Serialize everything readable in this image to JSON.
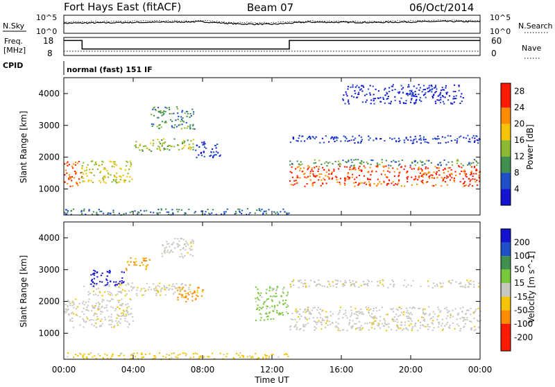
{
  "header": {
    "station": "Fort Hays East (fitACF)",
    "beam": "Beam 07",
    "date": "06/Oct/2014"
  },
  "top_panels": {
    "nsky_label": "N.Sky",
    "nsearch_label": "N.Search",
    "noise_ticks": [
      "10^5",
      "10^0"
    ],
    "freq_label_1": "Freq.",
    "freq_label_2": "[MHz]",
    "freq_ticks": [
      "18",
      "8"
    ],
    "nave_label": "Nave",
    "nave_ticks": [
      "60",
      "0"
    ],
    "cpid_label": "CPID",
    "cpid_text": "normal (fast) 151 IF"
  },
  "colors": {
    "red": "#ff1a00",
    "orange": "#ff8c00",
    "yellow": "#f5c400",
    "green": "#3f8f4f",
    "blue": "#2050c8",
    "deepblue": "#1414d0",
    "lightgreen": "#78c83c",
    "grey": "#c8c8c0"
  },
  "chart_data": [
    {
      "type": "line",
      "title": "N.Sky / N.Search",
      "x_range_hours": [
        0,
        24
      ],
      "ylim_log10": [
        0,
        5
      ],
      "series": [
        {
          "name": "N.Sky",
          "style": "solid",
          "x": [
            0,
            4,
            8,
            10,
            12,
            14,
            18,
            22,
            24
          ],
          "log10_y": [
            2.8,
            3.0,
            3.2,
            2.6,
            2.5,
            3.1,
            3.0,
            3.3,
            3.2
          ]
        },
        {
          "name": "N.Search",
          "style": "dotted",
          "x": [
            0,
            4,
            8,
            10,
            12,
            14,
            18,
            22,
            24
          ],
          "log10_y": [
            3.1,
            3.4,
            3.5,
            3.0,
            2.9,
            3.4,
            3.3,
            3.6,
            3.5
          ]
        }
      ]
    },
    {
      "type": "line",
      "title": "Freq. / Nave",
      "x_range_hours": [
        0,
        24
      ],
      "ylim_freq": [
        8,
        18
      ],
      "ylim_nave": [
        0,
        60
      ],
      "series": [
        {
          "name": "Freq.",
          "style": "solid",
          "x": [
            0,
            1.05,
            1.05,
            13.0,
            13.0,
            24
          ],
          "y": [
            16.3,
            16.3,
            11.6,
            11.6,
            16.3,
            16.3
          ]
        },
        {
          "name": "Nave",
          "style": "dotted",
          "x": [
            0,
            24
          ],
          "y": [
            14,
            14
          ]
        }
      ]
    },
    {
      "type": "heatmap",
      "title": "Power [dB]",
      "xlabel": "Time UT",
      "ylabel": "Slant Range [km]",
      "x_ticks": [
        "00:00",
        "04:00",
        "08:00",
        "12:00",
        "16:00",
        "20:00",
        "00:00"
      ],
      "y_ticks": [
        1000,
        2000,
        3000,
        4000
      ],
      "ylim": [
        180,
        4500
      ],
      "colorbar_label": "Power [dB]",
      "colorbar_ticks": [
        4,
        8,
        12,
        16,
        20,
        24,
        28
      ],
      "colorbar_range": [
        0,
        30
      ],
      "regions": [
        {
          "hours": [
            0,
            1.0
          ],
          "range_km": [
            1100,
            1900
          ],
          "value_db": 26
        },
        {
          "hours": [
            1.0,
            4.0
          ],
          "range_km": [
            1200,
            1900
          ],
          "value_db": 18
        },
        {
          "hours": [
            4.0,
            7.5
          ],
          "range_km": [
            2200,
            2600
          ],
          "value_db": 16
        },
        {
          "hours": [
            5.0,
            7.5
          ],
          "range_km": [
            2900,
            3600
          ],
          "value_db": 12
        },
        {
          "hours": [
            7.5,
            9.0
          ],
          "range_km": [
            2000,
            2500
          ],
          "value_db": 6
        },
        {
          "hours": [
            0,
            13
          ],
          "range_km": [
            200,
            400
          ],
          "value_db": 10
        },
        {
          "hours": [
            13.0,
            24.0
          ],
          "range_km": [
            1100,
            1750
          ],
          "value_db": 27
        },
        {
          "hours": [
            13.0,
            24.0
          ],
          "range_km": [
            1750,
            1950
          ],
          "value_db": 12
        },
        {
          "hours": [
            13.0,
            24.0
          ],
          "range_km": [
            2450,
            2700
          ],
          "value_db": 6
        },
        {
          "hours": [
            16.0,
            23.0
          ],
          "range_km": [
            3700,
            4300
          ],
          "value_db": 5
        }
      ]
    },
    {
      "type": "heatmap",
      "title": "Velocity [m s^-1]",
      "xlabel": "Time UT",
      "ylabel": "Slant Range [km]",
      "x_ticks": [
        "00:00",
        "04:00",
        "08:00",
        "12:00",
        "16:00",
        "20:00",
        "00:00"
      ],
      "y_ticks": [
        1000,
        2000,
        3000,
        4000
      ],
      "ylim": [
        180,
        4500
      ],
      "colorbar_label": "Velocity [m s^-1]",
      "colorbar_ticks": [
        200,
        100,
        50,
        15,
        -15,
        -50,
        -100,
        -200
      ],
      "regions": [
        {
          "hours": [
            0,
            4.0
          ],
          "range_km": [
            1200,
            2100
          ],
          "value_ms": 0
        },
        {
          "hours": [
            1.0,
            7.5
          ],
          "range_km": [
            2200,
            2600
          ],
          "value_ms": -5
        },
        {
          "hours": [
            1.5,
            3.5
          ],
          "range_km": [
            2500,
            3000
          ],
          "value_ms": 180
        },
        {
          "hours": [
            3.5,
            5.0
          ],
          "range_km": [
            3000,
            3400
          ],
          "value_ms": -60
        },
        {
          "hours": [
            5.5,
            7.5
          ],
          "range_km": [
            3400,
            4000
          ],
          "value_ms": 0
        },
        {
          "hours": [
            6.5,
            8.0
          ],
          "range_km": [
            2000,
            2500
          ],
          "value_ms": -60
        },
        {
          "hours": [
            11.0,
            12.9
          ],
          "range_km": [
            1400,
            2500
          ],
          "value_ms": 40
        },
        {
          "hours": [
            13.0,
            24.0
          ],
          "range_km": [
            1100,
            1850
          ],
          "value_ms": 0
        },
        {
          "hours": [
            13.0,
            24.0
          ],
          "range_km": [
            2450,
            2700
          ],
          "value_ms": 0
        },
        {
          "hours": [
            0,
            13
          ],
          "range_km": [
            200,
            400
          ],
          "value_ms": -30
        }
      ]
    }
  ]
}
